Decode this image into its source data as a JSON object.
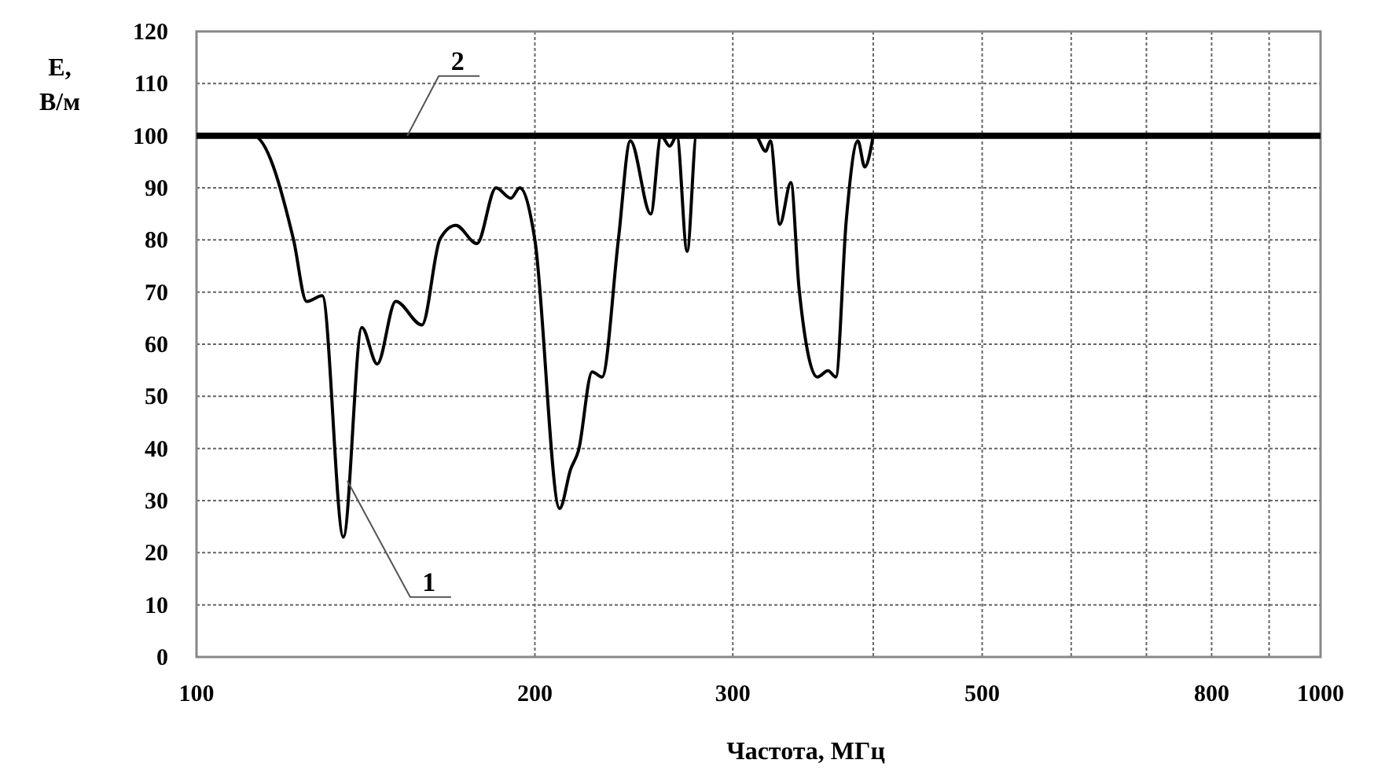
{
  "chart_data": {
    "type": "line",
    "xlabel": "Частота, МГц",
    "ylabel": "E, В/м",
    "log": "x",
    "grid": true,
    "line_style": "solid",
    "xlim": [
      100,
      1000
    ],
    "xticks": [
      100,
      200,
      300,
      {
        "value": 400,
        "label": null
      },
      500,
      {
        "value": 600,
        "label": null
      },
      {
        "value": 700,
        "label": null
      },
      800,
      {
        "value": 900,
        "label": null
      },
      1000
    ],
    "ylim": [
      0,
      120
    ],
    "yticks": [
      0,
      10,
      20,
      30,
      40,
      50,
      60,
      70,
      80,
      90,
      100,
      110,
      120
    ],
    "series": [
      {
        "color": "#000000",
        "x": [
          100,
          112.3,
          122,
          125.3,
          129.4,
          135.1,
          140.3,
          144.8,
          150.4,
          158.7,
          164.7,
          170.1,
          177.6,
          184.7,
          190.4,
          193.9,
          200,
          210.4,
          215.2,
          218.7,
          224.9,
          229.5,
          237.3,
          243.2,
          253.6,
          259,
          263.6,
          267.5,
          273.2,
          278.5,
          314.2,
          320.9,
          324,
          330.3,
          337.9,
          343.6,
          356.8,
          364.6,
          370.5,
          378.5,
          387.6,
          393.1,
          400
        ],
        "values": [
          100,
          100,
          80,
          68.2,
          69.3,
          23,
          63.2,
          56.2,
          68.2,
          63.7,
          80.2,
          82.8,
          79.3,
          90,
          88,
          90,
          80,
          28.5,
          36,
          39.6,
          54.7,
          53.7,
          80,
          99,
          85,
          100,
          98,
          100,
          77.8,
          100,
          100,
          97,
          99,
          83,
          91,
          70.7,
          53.7,
          54.9,
          53.7,
          83.8,
          99,
          94,
          100
        ]
      },
      {
        "color": "#000000",
        "x": [
          100,
          1000
        ],
        "values": [
          100,
          100
        ]
      }
    ],
    "annotations": [
      {
        "text": "1",
        "x": 136.2,
        "y": 33.8
      },
      {
        "text": "2",
        "x": 154,
        "y": 100
      }
    ]
  }
}
